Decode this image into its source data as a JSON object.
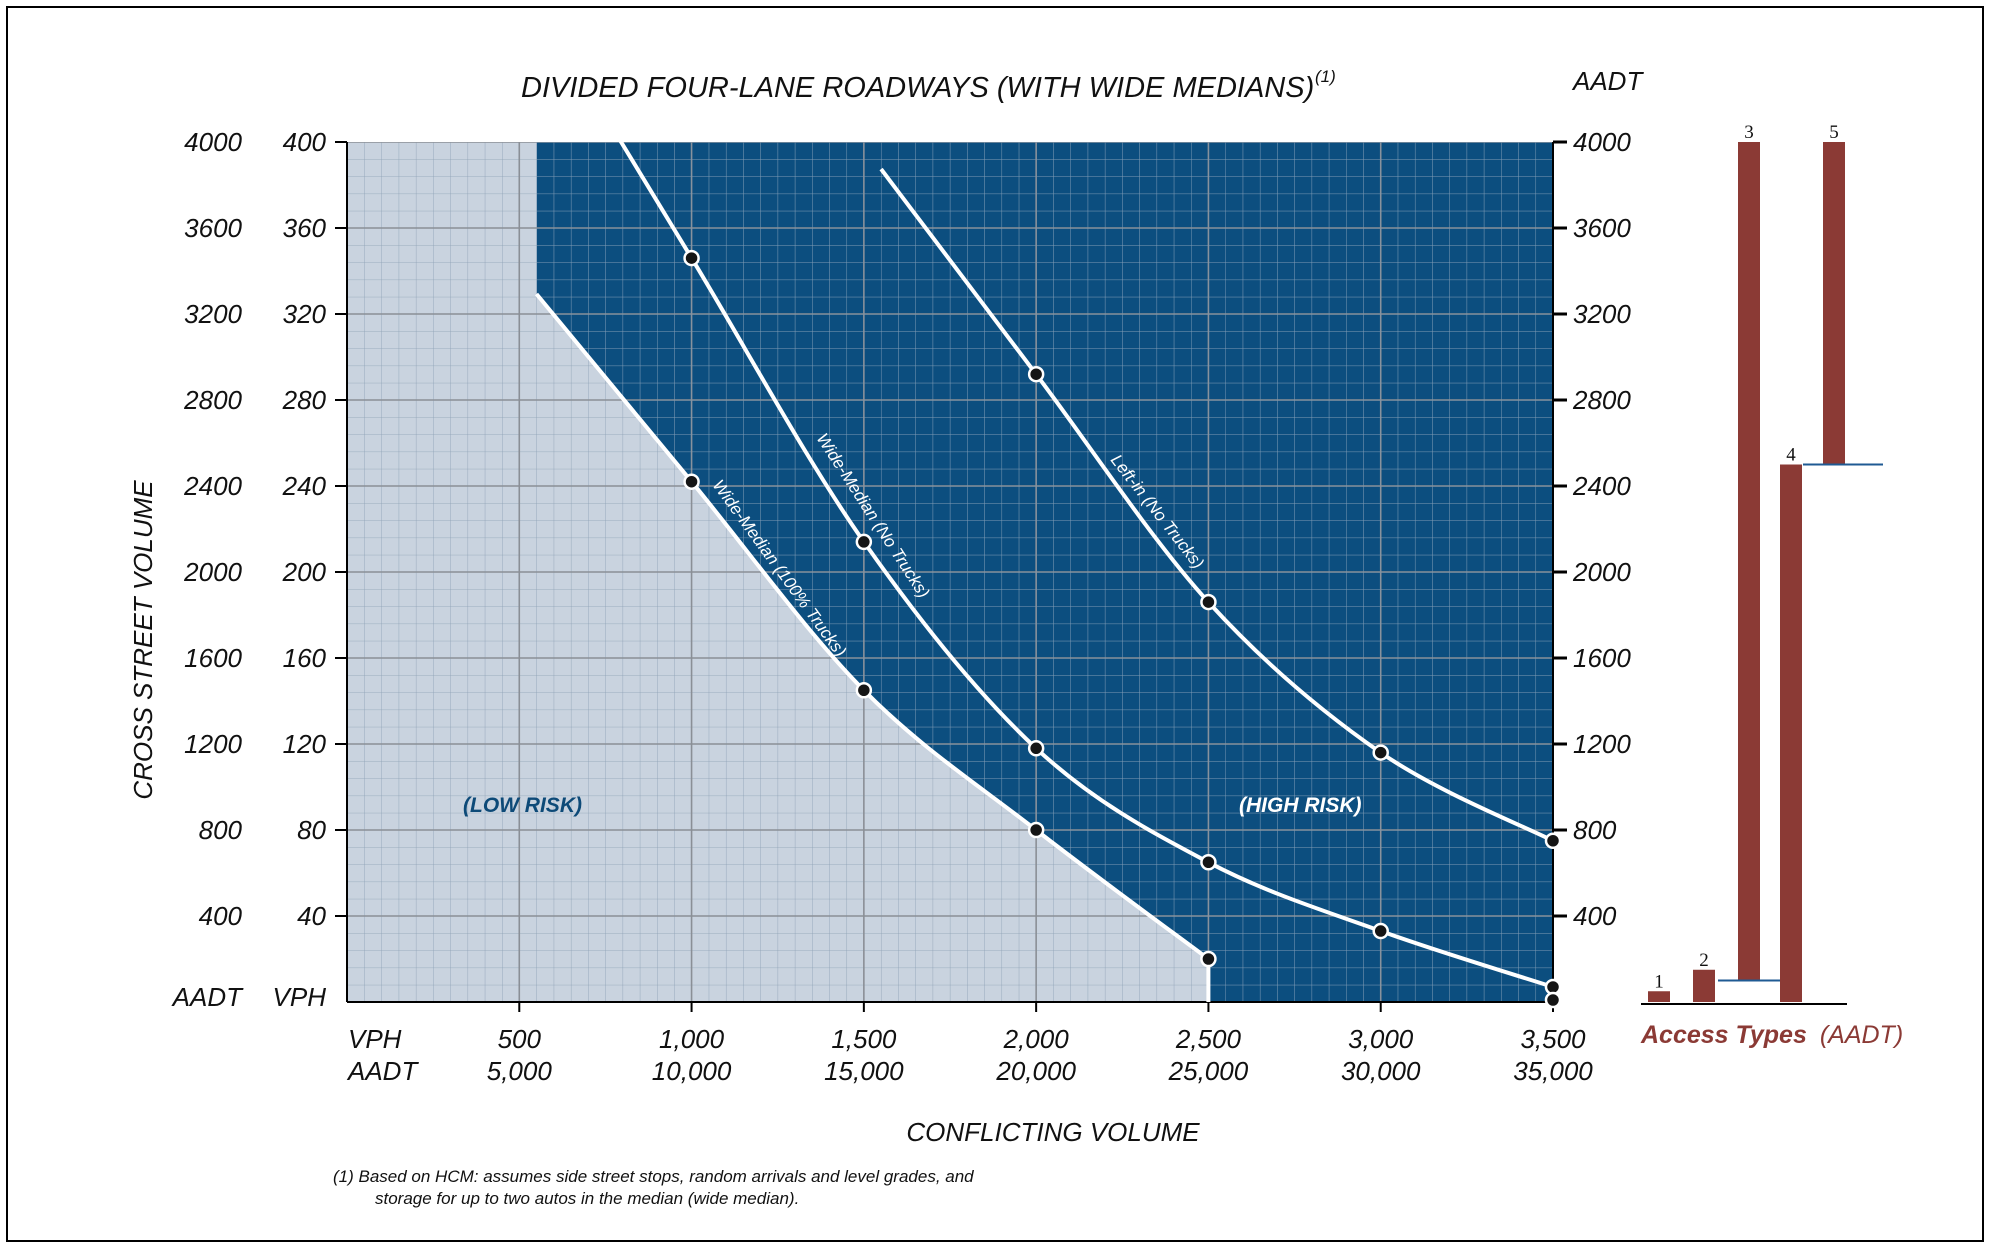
{
  "chart_data": {
    "type": "line",
    "title": "DIVIDED FOUR-LANE ROADWAYS (WITH WIDE MEDIANS)",
    "title_footnote_marker": "(1)",
    "xlabel": "CONFLICTING VOLUME",
    "ylabel": "CROSS STREET VOLUME",
    "right_axis_label": "AADT",
    "x_unit_labels": [
      "VPH",
      "AADT"
    ],
    "y_unit_labels": [
      "AADT",
      "VPH"
    ],
    "x_ticks_vph": [
      500,
      1000,
      1500,
      2000,
      2500,
      3000,
      3500
    ],
    "x_tick_labels_vph": [
      "500",
      "1,000",
      "1,500",
      "2,000",
      "2,500",
      "3,000",
      "3,500"
    ],
    "x_tick_labels_aadt": [
      "5,000",
      "10,000",
      "15,000",
      "20,000",
      "25,000",
      "30,000",
      "35,000"
    ],
    "y_ticks_vph": [
      40,
      80,
      120,
      160,
      200,
      240,
      280,
      320,
      360,
      400
    ],
    "y_tick_labels_vph": [
      "40",
      "80",
      "120",
      "160",
      "200",
      "240",
      "280",
      "320",
      "360",
      "400"
    ],
    "y_tick_labels_aadt": [
      "400",
      "800",
      "1200",
      "1600",
      "2000",
      "2400",
      "2800",
      "3200",
      "3600",
      "4000"
    ],
    "xlim": [
      0,
      3500
    ],
    "ylim": [
      0,
      400
    ],
    "series": [
      {
        "name": "Wide-Median (100% Trucks)",
        "x": [
          1000,
          1500,
          2000,
          2500
        ],
        "y": [
          242,
          145,
          80,
          20
        ]
      },
      {
        "name": "Wide-Median (No Trucks)",
        "x": [
          1000,
          1500,
          2000,
          2500,
          3000,
          3500
        ],
        "y": [
          346,
          214,
          118,
          65,
          33,
          7
        ]
      },
      {
        "name": "Left-in (No Trucks)",
        "x": [
          2000,
          2500,
          3000,
          3500
        ],
        "y": [
          292,
          186,
          116,
          75
        ]
      }
    ],
    "regions": [
      {
        "name": "(LOW RISK)"
      },
      {
        "name": "(HIGH RISK)"
      }
    ],
    "colors": {
      "low_risk_fill": "#c9d3df",
      "high_risk_fill": "#0c4e7f",
      "bar": "#8b3a35",
      "access_title": "#8b3a35",
      "low_label": "#0d4a78"
    }
  },
  "access_types": {
    "title": "Access Types",
    "unit": "(AADT)",
    "bars": [
      {
        "label": "1",
        "top_aadt": 50,
        "bottom_aadt": 0
      },
      {
        "label": "2",
        "top_aadt": 150,
        "bottom_aadt": 0
      },
      {
        "label": "3",
        "top_aadt": 4000,
        "bottom_aadt": 100
      },
      {
        "label": "4",
        "top_aadt": 2500,
        "bottom_aadt": 0
      },
      {
        "label": "5",
        "top_aadt": 4000,
        "bottom_aadt": 2500
      }
    ]
  },
  "footnote": {
    "line1": "(1) Based on HCM: assumes side street stops, random arrivals and level grades, and",
    "line2": "storage for up to two autos in the median (wide median)."
  }
}
